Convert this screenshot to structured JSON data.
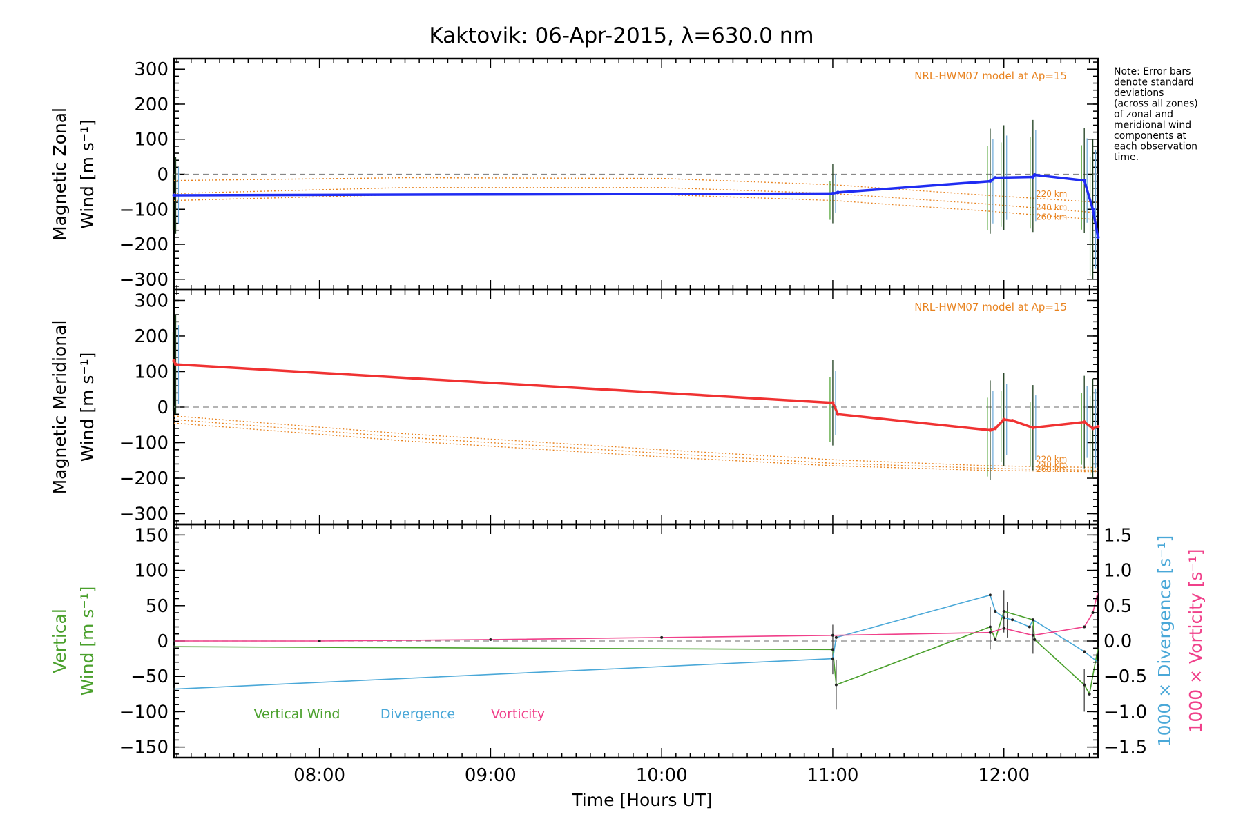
{
  "chart_data": {
    "title": "Kaktovik: 06-Apr-2015, λ=630.0 nm",
    "xlabel": "Time [Hours UT]",
    "xlim": [
      7.15,
      12.55
    ],
    "x_ticks": [
      8,
      9,
      10,
      11,
      12
    ],
    "x_tick_labels": [
      "08:00",
      "09:00",
      "10:00",
      "11:00",
      "12:00"
    ],
    "note_lines": [
      "Note: Error bars",
      "denote standard",
      "deviations",
      "(across all zones)",
      "of zonal and",
      "meridional wind",
      "components at",
      "each observation",
      "time."
    ],
    "panels": [
      {
        "type": "line",
        "ylabel_1": "Magnetic Zonal",
        "ylabel_2": "Wind [m s⁻¹]",
        "ylim": [
          -330,
          330
        ],
        "yticks": [
          -300,
          -200,
          -100,
          0,
          100,
          200,
          300
        ],
        "ytick_labels": [
          "−300",
          "−200",
          "−100",
          "0",
          "100",
          "200",
          "300"
        ],
        "model_label": "NRL-HWM07 model at Ap=15",
        "altitude_labels": [
          "220 km",
          "240 km",
          "260 km"
        ],
        "series": [
          {
            "color": "#1f2cf2",
            "x": [
              7.15,
              11.0,
              11.03,
              11.92,
              11.95,
              12.17,
              12.18,
              12.47,
              12.52,
              12.55
            ],
            "y": [
              -60,
              -55,
              -52,
              -20,
              -10,
              -8,
              -2,
              -18,
              -100,
              -180
            ]
          }
        ],
        "model_series": [
          {
            "x": [
              7.15,
              8.5,
              10.0,
              11.0,
              11.9,
              12.55
            ],
            "y": [
              -18,
              -10,
              -12,
              -30,
              -60,
              -80
            ]
          },
          {
            "x": [
              7.15,
              8.5,
              10.0,
              11.0,
              11.9,
              12.55
            ],
            "y": [
              -55,
              -38,
              -38,
              -55,
              -85,
              -110
            ]
          },
          {
            "x": [
              7.15,
              8.5,
              10.0,
              11.0,
              11.9,
              12.55
            ],
            "y": [
              -75,
              -58,
              -58,
              -75,
              -105,
              -130
            ]
          }
        ],
        "error_bars": [
          {
            "x": 7.16,
            "y": -60,
            "err": 110
          },
          {
            "x": 11.0,
            "y": -55,
            "err": 85
          },
          {
            "x": 11.92,
            "y": -20,
            "err": 150
          },
          {
            "x": 12.0,
            "y": -10,
            "err": 150
          },
          {
            "x": 12.17,
            "y": -5,
            "err": 160
          },
          {
            "x": 12.47,
            "y": -18,
            "err": 150
          },
          {
            "x": 12.52,
            "y": -100,
            "err": 200
          }
        ]
      },
      {
        "type": "line",
        "ylabel_1": "Magnetic Meridional",
        "ylabel_2": "Wind [m s⁻¹]",
        "ylim": [
          -330,
          330
        ],
        "yticks": [
          -300,
          -200,
          -100,
          0,
          100,
          200,
          300
        ],
        "ytick_labels": [
          "−300",
          "−200",
          "−100",
          "0",
          "100",
          "200",
          "300"
        ],
        "model_label": "NRL-HWM07 model at Ap=15",
        "altitude_labels": [
          "220 km",
          "240 km",
          "260 km"
        ],
        "series": [
          {
            "color": "#f03232",
            "x": [
              7.15,
              7.16,
              11.0,
              11.03,
              11.92,
              11.95,
              12.0,
              12.05,
              12.17,
              12.47,
              12.52,
              12.55
            ],
            "y": [
              130,
              120,
              12,
              -20,
              -65,
              -60,
              -35,
              -38,
              -58,
              -42,
              -60,
              -55
            ]
          }
        ],
        "model_series": [
          {
            "x": [
              7.15,
              8.5,
              10.0,
              11.0,
              11.9,
              12.55
            ],
            "y": [
              -25,
              -75,
              -120,
              -148,
              -165,
              -170
            ]
          },
          {
            "x": [
              7.15,
              8.5,
              10.0,
              11.0,
              11.9,
              12.55
            ],
            "y": [
              -35,
              -85,
              -130,
              -158,
              -172,
              -178
            ]
          },
          {
            "x": [
              7.15,
              8.5,
              10.0,
              11.0,
              11.9,
              12.55
            ],
            "y": [
              -45,
              -95,
              -140,
              -165,
              -178,
              -182
            ]
          }
        ],
        "error_bars": [
          {
            "x": 7.16,
            "y": 120,
            "err": 140
          },
          {
            "x": 11.0,
            "y": 12,
            "err": 120
          },
          {
            "x": 11.92,
            "y": -65,
            "err": 140
          },
          {
            "x": 12.0,
            "y": -35,
            "err": 130
          },
          {
            "x": 12.17,
            "y": -58,
            "err": 120
          },
          {
            "x": 12.47,
            "y": -42,
            "err": 130
          },
          {
            "x": 12.52,
            "y": -60,
            "err": 140
          }
        ]
      },
      {
        "type": "line",
        "ylabel_1": "Vertical",
        "ylabel_2": "Wind [m s⁻¹]",
        "ylim": [
          -165,
          165
        ],
        "yticks": [
          -150,
          -100,
          -50,
          0,
          50,
          100,
          150
        ],
        "ytick_labels": [
          "−150",
          "−100",
          "−50",
          "0",
          "50",
          "100",
          "150"
        ],
        "right_axis": {
          "ylim": [
            -1.65,
            1.65
          ],
          "yticks": [
            -1.5,
            -1.0,
            -0.5,
            0.0,
            0.5,
            1.0,
            1.5
          ],
          "ytick_labels": [
            "−1.5",
            "−1.0",
            "−0.5",
            "0.0",
            "0.5",
            "1.0",
            "1.5"
          ],
          "label_divergence": "1000 × Divergence [s⁻¹]",
          "label_vorticity": "1000 × Vorticity [s⁻¹]"
        },
        "legend": [
          "Vertical Wind",
          "Divergence",
          "Vorticity"
        ],
        "series": [
          {
            "name": "Vertical Wind",
            "color": "#4aa02c",
            "x": [
              7.15,
              11.0,
              11.02,
              11.92,
              11.95,
              12.0,
              12.17,
              12.18,
              12.47,
              12.5,
              12.55
            ],
            "y": [
              -8,
              -12,
              -62,
              20,
              2,
              42,
              30,
              2,
              -62,
              -75,
              -10
            ]
          },
          {
            "name": "Divergence",
            "color": "#4aa8d8",
            "axis": "right",
            "x": [
              7.15,
              11.0,
              11.02,
              11.92,
              11.95,
              12.0,
              12.05,
              12.15,
              12.17,
              12.47,
              12.55
            ],
            "y": [
              -0.68,
              -0.25,
              0.05,
              0.65,
              0.42,
              0.33,
              0.3,
              0.2,
              0.3,
              -0.15,
              -0.3
            ]
          },
          {
            "name": "Vorticity",
            "color": "#f0408a",
            "axis": "right",
            "x": [
              7.15,
              8.0,
              9.0,
              10.0,
              11.0,
              11.92,
              12.0,
              12.17,
              12.47,
              12.52,
              12.55
            ],
            "y": [
              0.0,
              0.0,
              0.02,
              0.05,
              0.08,
              0.12,
              0.18,
              0.08,
              0.2,
              0.4,
              0.7
            ]
          }
        ],
        "error_bars": [
          {
            "x": 11.0,
            "y": -12,
            "err": 35
          },
          {
            "x": 11.02,
            "y": -62,
            "err": 35
          },
          {
            "x": 11.92,
            "y": 18,
            "err": 30
          },
          {
            "x": 12.0,
            "y": 42,
            "err": 30
          },
          {
            "x": 12.02,
            "y": 30,
            "err": 25
          },
          {
            "x": 12.17,
            "y": 2,
            "err": 20
          },
          {
            "x": 12.47,
            "y": -70,
            "err": 30
          }
        ]
      }
    ]
  }
}
